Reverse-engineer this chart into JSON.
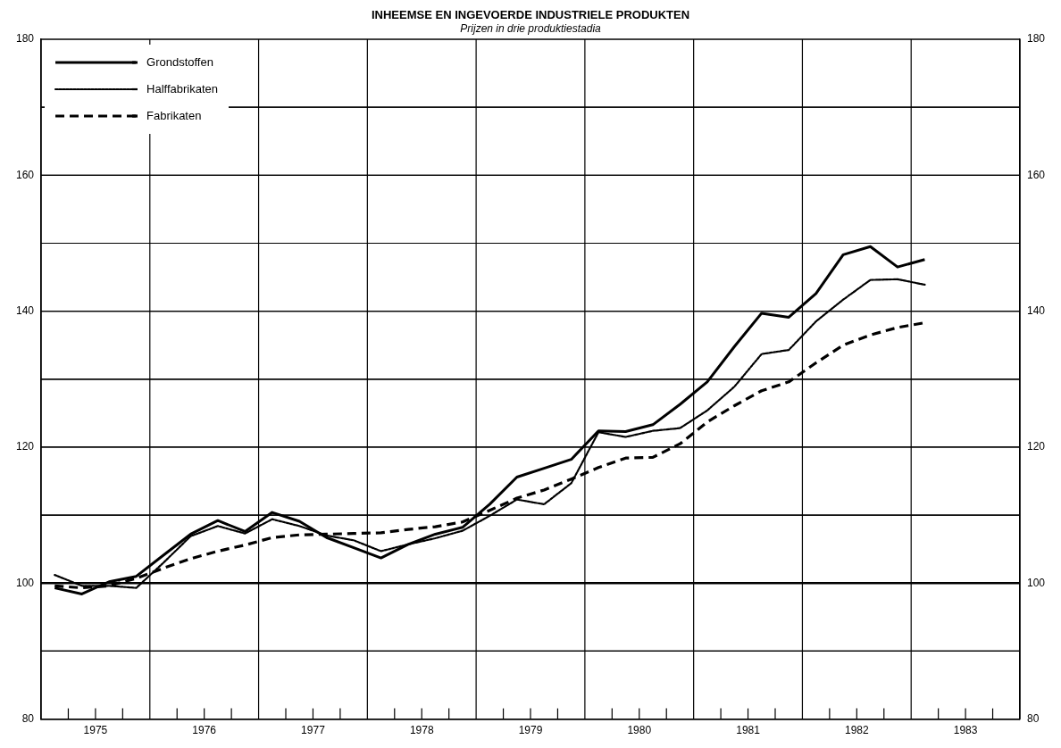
{
  "chart_data": {
    "type": "line",
    "title": "INHEEMSE EN INGEVOERDE INDUSTRIELE PRODUKTEN",
    "subtitle": "Prijzen in drie produktiestadia",
    "x": [
      1975.125,
      1975.375,
      1975.625,
      1975.875,
      1976.125,
      1976.375,
      1976.625,
      1976.875,
      1977.125,
      1977.375,
      1977.625,
      1977.875,
      1978.125,
      1978.375,
      1978.625,
      1978.875,
      1979.125,
      1979.375,
      1979.625,
      1979.875,
      1980.125,
      1980.375,
      1980.625,
      1980.875,
      1981.125,
      1981.375,
      1981.625,
      1981.875,
      1982.125,
      1982.375,
      1982.625,
      1982.875,
      1983.125
    ],
    "series": [
      {
        "name": "Grondstoffen",
        "color": "#000000",
        "line_style": "solid",
        "values": [
          99.3,
          98.4,
          100.2,
          101,
          104.1,
          107.2,
          109.2,
          107.6,
          110.4,
          109.1,
          106.7,
          105.2,
          103.7,
          105.7,
          107.2,
          108.2,
          111.6,
          115.6,
          116.9,
          118.2,
          122.4,
          122.3,
          123.3,
          126.3,
          129.6,
          134.8,
          139.7,
          139.1,
          142.6,
          148.3,
          149.5,
          146.5,
          147.6
        ]
      },
      {
        "name": "Halffabrikaten",
        "color": "#000000",
        "line_style": "dotted",
        "values": [
          101.2,
          99.6,
          99.6,
          99.3,
          103,
          106.9,
          108.4,
          107.3,
          109.4,
          108.4,
          107,
          106.3,
          104.7,
          105.7,
          106.6,
          107.7,
          109.9,
          112.3,
          111.6,
          114.7,
          122.2,
          121.5,
          122.4,
          122.8,
          125.4,
          128.9,
          133.7,
          134.3,
          138.5,
          141.7,
          144.6,
          144.7,
          143.9
        ]
      },
      {
        "name": "Fabrikaten",
        "color": "#000000",
        "line_style": "dashed",
        "values": [
          99.6,
          99.3,
          99.6,
          100.7,
          102.2,
          103.6,
          104.7,
          105.6,
          106.7,
          107.1,
          107.2,
          107.3,
          107.4,
          107.9,
          108.3,
          109,
          110.7,
          112.5,
          113.7,
          115.3,
          117,
          118.4,
          118.5,
          120.5,
          123.7,
          126.1,
          128.3,
          129.6,
          132.4,
          135,
          136.5,
          137.6,
          138.3
        ]
      }
    ],
    "xlim": [
      1975,
      1984
    ],
    "xticks": [
      {
        "value": 1975,
        "label": null
      },
      {
        "value": 1975.25,
        "label": null
      },
      {
        "value": 1975.5,
        "label": "1975"
      },
      {
        "value": 1975.75,
        "label": null
      },
      {
        "value": 1976,
        "label": null
      },
      {
        "value": 1976.25,
        "label": null
      },
      {
        "value": 1976.5,
        "label": "1976"
      },
      {
        "value": 1976.75,
        "label": null
      },
      {
        "value": 1977,
        "label": null
      },
      {
        "value": 1977.25,
        "label": null
      },
      {
        "value": 1977.5,
        "label": "1977"
      },
      {
        "value": 1977.75,
        "label": null
      },
      {
        "value": 1978,
        "label": null
      },
      {
        "value": 1978.25,
        "label": null
      },
      {
        "value": 1978.5,
        "label": "1978"
      },
      {
        "value": 1978.75,
        "label": null
      },
      {
        "value": 1979,
        "label": null
      },
      {
        "value": 1979.25,
        "label": null
      },
      {
        "value": 1979.5,
        "label": "1979"
      },
      {
        "value": 1979.75,
        "label": null
      },
      {
        "value": 1980,
        "label": null
      },
      {
        "value": 1980.25,
        "label": null
      },
      {
        "value": 1980.5,
        "label": "1980"
      },
      {
        "value": 1980.75,
        "label": null
      },
      {
        "value": 1981,
        "label": null
      },
      {
        "value": 1981.25,
        "label": null
      },
      {
        "value": 1981.5,
        "label": "1981"
      },
      {
        "value": 1981.75,
        "label": null
      },
      {
        "value": 1982,
        "label": null
      },
      {
        "value": 1982.25,
        "label": null
      },
      {
        "value": 1982.5,
        "label": "1982"
      },
      {
        "value": 1982.75,
        "label": null
      },
      {
        "value": 1983,
        "label": null
      },
      {
        "value": 1983.25,
        "label": null
      },
      {
        "value": 1983.5,
        "label": "1983"
      },
      {
        "value": 1983.75,
        "label": null
      },
      {
        "value": 1984,
        "label": null
      }
    ],
    "ylim": [
      80,
      180
    ],
    "yticks": [
      80,
      {
        "value": 90,
        "label": null
      },
      100,
      {
        "value": 110,
        "label": null
      },
      120,
      {
        "value": 130,
        "label": null
      },
      140,
      {
        "value": 150,
        "label": null
      },
      160,
      {
        "value": 170,
        "label": null
      },
      180
    ],
    "y2lim": [
      80,
      180
    ],
    "y2ticks": [
      80,
      {
        "value": 90,
        "label": null
      },
      100,
      {
        "value": 110,
        "label": null
      },
      120,
      {
        "value": 130,
        "label": null
      },
      140,
      {
        "value": 150,
        "label": null
      },
      160,
      {
        "value": 170,
        "label": null
      },
      180
    ],
    "ref_lines": [
      {
        "axis": "y",
        "value": 100,
        "color": "#000000"
      }
    ],
    "grid": true,
    "legend": "top left",
    "marker": "none"
  }
}
